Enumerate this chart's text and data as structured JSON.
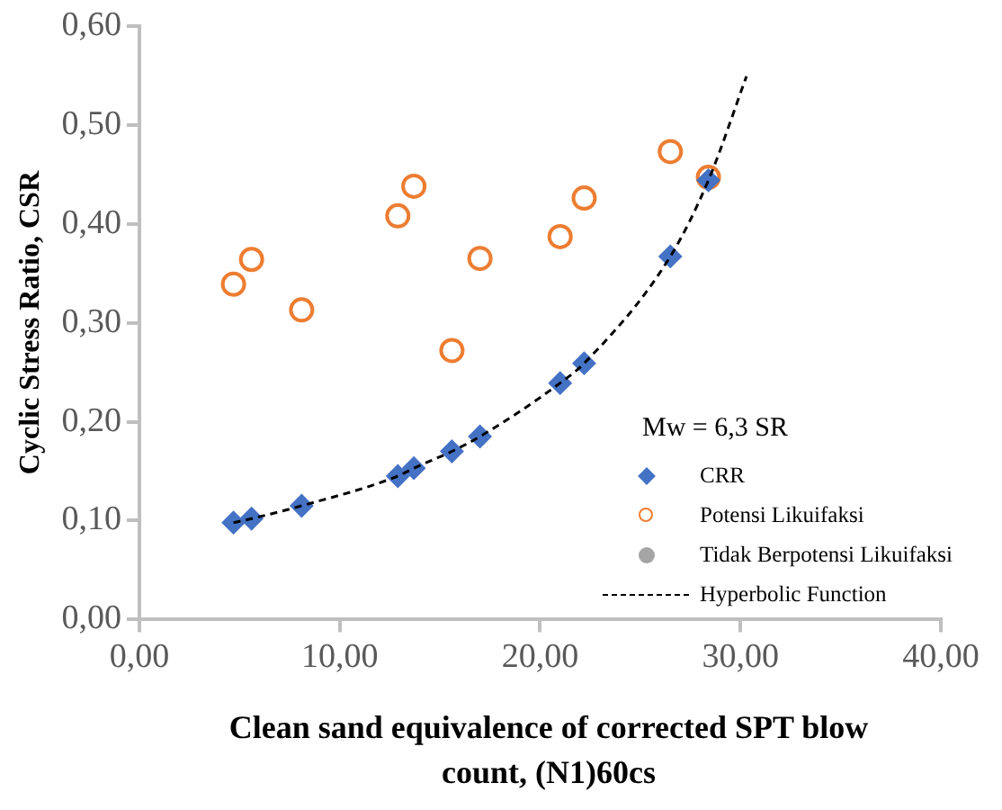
{
  "chart_data": {
    "type": "scatter",
    "xlabel": "Clean sand equivalence of corrected SPT blow count, (N1)60cs",
    "ylabel": "Cyclic Stress Ratio, CSR",
    "legend_title": "Mw = 6,3 SR",
    "legend": "bottom right",
    "grid": false,
    "xlim": [
      0,
      40
    ],
    "xticks": [
      {
        "value": 0,
        "label": "0,00"
      },
      {
        "value": 10,
        "label": "10,00"
      },
      {
        "value": 20,
        "label": "20,00"
      },
      {
        "value": 30,
        "label": "30,00"
      },
      {
        "value": 40,
        "label": "40,00"
      }
    ],
    "ylim": [
      0,
      0.6
    ],
    "yticks": [
      {
        "value": 0,
        "label": "0,00"
      },
      {
        "value": 0.1,
        "label": "0,10"
      },
      {
        "value": 0.2,
        "label": "0,20"
      },
      {
        "value": 0.3,
        "label": "0,30"
      },
      {
        "value": 0.4,
        "label": "0,40"
      },
      {
        "value": 0.5,
        "label": "0,50"
      },
      {
        "value": 0.6,
        "label": "0,60"
      }
    ],
    "series": [
      {
        "name": "CRR",
        "type": "scatter",
        "marker": "diamond",
        "color": "#4472c4",
        "x": [
          4.7,
          5.6,
          8.1,
          12.9,
          13.7,
          15.6,
          17.0,
          21.0,
          22.2,
          26.5,
          28.4
        ],
        "values": [
          0.098,
          0.102,
          0.115,
          0.145,
          0.153,
          0.17,
          0.185,
          0.239,
          0.259,
          0.367,
          0.444
        ]
      },
      {
        "name": "Potensi Likuifaksi",
        "type": "scatter",
        "marker": "circle",
        "color": "#ed7d31",
        "x": [
          4.7,
          5.6,
          8.1,
          12.9,
          13.7,
          15.6,
          17.0,
          21.0,
          22.2,
          26.5,
          28.4
        ],
        "values": [
          0.339,
          0.364,
          0.313,
          0.408,
          0.438,
          0.272,
          0.365,
          0.387,
          0.426,
          0.473,
          0.447
        ]
      },
      {
        "name": "Tidak Berpotensi Likuifaksi",
        "type": "scatter",
        "marker": "circle",
        "color": "#a5a5a5"
      },
      {
        "name": "Hyperbolic Function",
        "type": "line",
        "marker": "none",
        "line_style": "dashed",
        "color": "#000000",
        "x": [
          4.7,
          5.6,
          8.1,
          12.9,
          13.7,
          15.6,
          17.0,
          21.0,
          22.2,
          26.5,
          28.4,
          30.3
        ],
        "values": [
          0.098,
          0.102,
          0.115,
          0.145,
          0.153,
          0.17,
          0.185,
          0.239,
          0.259,
          0.367,
          0.444,
          0.549
        ]
      }
    ]
  }
}
